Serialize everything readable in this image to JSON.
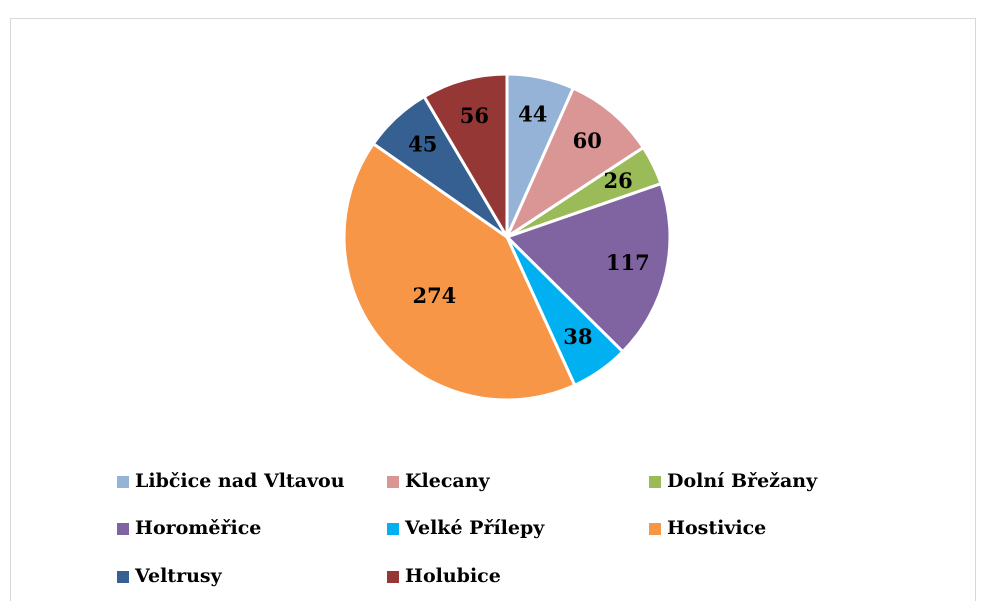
{
  "chart_data": {
    "type": "pie",
    "categories": [
      "Libčice nad Vltavou",
      "Klecany",
      "Dolní Břežany",
      "Horoměřice",
      "Velké Přílepy",
      "Hostivice",
      "Veltrusy",
      "Holubice"
    ],
    "values": [
      44,
      60,
      26,
      117,
      38,
      274,
      45,
      56
    ],
    "colors": [
      "#95b3d7",
      "#da9694",
      "#9bbb59",
      "#8064a2",
      "#00b0f0",
      "#f79646",
      "#376092",
      "#953735"
    ],
    "legend": "bottom"
  }
}
